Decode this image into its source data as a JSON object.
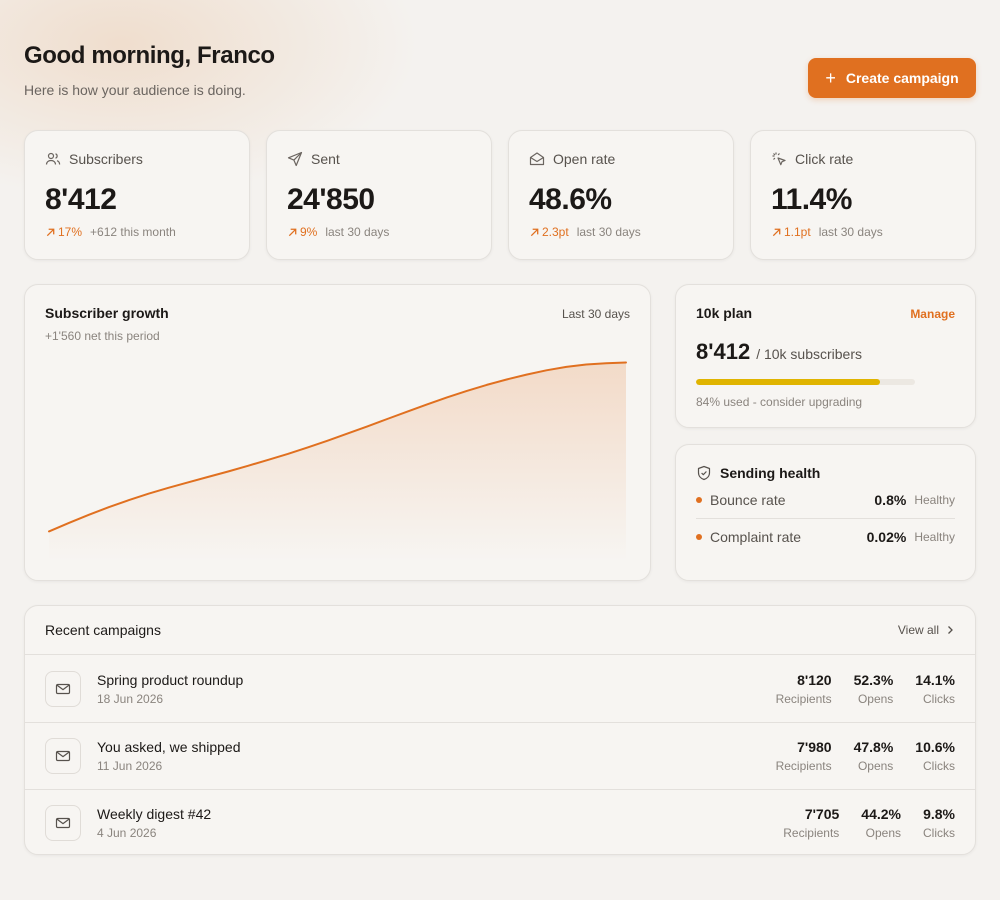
{
  "header": {
    "greeting": "Good morning, Franco",
    "subline": "Here is how your audience is doing.",
    "cta_label": "Create campaign"
  },
  "stats": [
    {
      "label": "Subscribers",
      "icon": "users-icon",
      "value": "8'412",
      "delta": "17%",
      "note": "+612 this month"
    },
    {
      "label": "Sent",
      "icon": "send-icon",
      "value": "24'850",
      "delta": "9%",
      "note": "last 30 days"
    },
    {
      "label": "Open rate",
      "icon": "open-envelope-icon",
      "value": "48.6%",
      "delta": "2.3pt",
      "note": "last 30 days"
    },
    {
      "label": "Click rate",
      "icon": "cursor-click-icon",
      "value": "11.4%",
      "delta": "1.1pt",
      "note": "last 30 days"
    }
  ],
  "growth": {
    "title": "Subscriber growth",
    "period": "Last 30 days",
    "net": "+1'560 net this period"
  },
  "chart_data": {
    "type": "area",
    "title": "Subscriber growth",
    "x": [
      1,
      2,
      3,
      4,
      5,
      6,
      7,
      8,
      9,
      10,
      11,
      12,
      13,
      14,
      15,
      16,
      17,
      18,
      19,
      20,
      21,
      22,
      23,
      24,
      25,
      26,
      27,
      28,
      29,
      30
    ],
    "series": [
      {
        "values": [
          6852,
          6930,
          7005,
          7075,
          7140,
          7200,
          7255,
          7305,
          7355,
          7405,
          7458,
          7512,
          7568,
          7628,
          7690,
          7755,
          7822,
          7890,
          7958,
          8025,
          8090,
          8150,
          8205,
          8255,
          8300,
          8340,
          8372,
          8394,
          8406,
          8412
        ]
      }
    ],
    "ylim": [
      6800,
      8500
    ],
    "grid": false,
    "color": "#e07020"
  },
  "plan": {
    "title": "10k plan",
    "manage": "Manage",
    "used": "8'412",
    "of": "/ 10k subscribers",
    "fraction": 0.84,
    "hint": "84% used - consider upgrading"
  },
  "health": {
    "title": "Sending health",
    "rows": [
      {
        "label": "Bounce rate",
        "value": "0.8%",
        "status": "Healthy"
      },
      {
        "label": "Complaint rate",
        "value": "0.02%",
        "status": "Healthy"
      }
    ]
  },
  "campaigns": {
    "title": "Recent campaigns",
    "view_all": "View all",
    "rows": [
      {
        "name": "Spring product roundup",
        "date": "18 Jun 2026",
        "recipients": "8'120",
        "opens": "52.3%",
        "clicks": "14.1%"
      },
      {
        "name": "You asked, we shipped",
        "date": "11 Jun 2026",
        "recipients": "7'980",
        "opens": "47.8%",
        "clicks": "10.6%"
      },
      {
        "name": "Weekly digest #42",
        "date": "4 Jun 2026",
        "recipients": "7'705",
        "opens": "44.2%",
        "clicks": "9.8%"
      }
    ],
    "labels": {
      "recipients": "Recipients",
      "opens": "Opens",
      "clicks": "Clicks"
    }
  },
  "colors": {
    "accent": "#e07020",
    "plan_bar": "#e0b400",
    "background": "#f4f2ef"
  }
}
